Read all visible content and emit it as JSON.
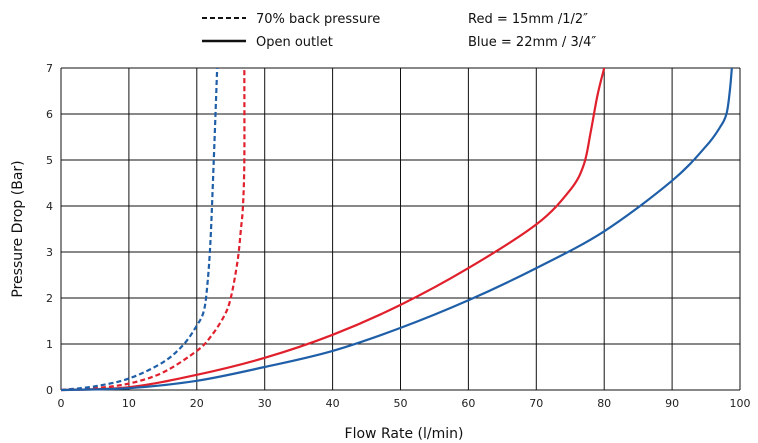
{
  "chart_data": {
    "type": "line",
    "xlabel": "Flow Rate (l/min)",
    "ylabel": "Pressure Drop (Bar)",
    "xlim": [
      0,
      100
    ],
    "ylim": [
      0,
      7
    ],
    "x_ticks": [
      "0",
      "10",
      "20",
      "30",
      "40",
      "50",
      "60",
      "70",
      "80",
      "90",
      "100"
    ],
    "y_ticks": [
      "0",
      "1",
      "2",
      "3",
      "4",
      "5",
      "6",
      "7"
    ],
    "grid": true,
    "legend": {
      "placement": "top",
      "entries": [
        {
          "label": "70% back pressure",
          "style": "dashed"
        },
        {
          "label": "Open outlet",
          "style": "solid"
        }
      ],
      "color_notes": [
        "Red = 15mm /1/2″",
        "Blue = 22mm / 3/4″"
      ]
    },
    "colors": {
      "red": "#e0202c",
      "blue": "#1f5fa8"
    },
    "series": [
      {
        "color": "red",
        "style": "dashed",
        "points": [
          [
            0,
            0
          ],
          [
            5,
            0.04
          ],
          [
            10,
            0.14
          ],
          [
            15,
            0.38
          ],
          [
            20,
            0.85
          ],
          [
            22,
            1.15
          ],
          [
            24,
            1.6
          ],
          [
            25,
            2.0
          ],
          [
            26,
            2.8
          ],
          [
            26.5,
            3.5
          ],
          [
            26.8,
            4.0
          ],
          [
            27,
            5.0
          ],
          [
            27,
            7.0
          ]
        ]
      },
      {
        "color": "blue",
        "style": "dashed",
        "points": [
          [
            0,
            0
          ],
          [
            5,
            0.08
          ],
          [
            10,
            0.25
          ],
          [
            15,
            0.6
          ],
          [
            18,
            0.98
          ],
          [
            20,
            1.4
          ],
          [
            21,
            1.7
          ],
          [
            21.5,
            2.2
          ],
          [
            22,
            3.2
          ],
          [
            22.5,
            5.0
          ],
          [
            23,
            7.0
          ]
        ]
      },
      {
        "color": "red",
        "style": "solid",
        "points": [
          [
            0,
            0
          ],
          [
            10,
            0.06
          ],
          [
            20,
            0.33
          ],
          [
            30,
            0.7
          ],
          [
            40,
            1.2
          ],
          [
            50,
            1.85
          ],
          [
            60,
            2.65
          ],
          [
            70,
            3.6
          ],
          [
            75,
            4.35
          ],
          [
            77,
            4.9
          ],
          [
            78,
            5.6
          ],
          [
            79,
            6.4
          ],
          [
            80,
            7.0
          ]
        ]
      },
      {
        "color": "blue",
        "style": "solid",
        "points": [
          [
            0,
            0
          ],
          [
            10,
            0.04
          ],
          [
            20,
            0.2
          ],
          [
            30,
            0.5
          ],
          [
            40,
            0.85
          ],
          [
            50,
            1.35
          ],
          [
            60,
            1.95
          ],
          [
            70,
            2.65
          ],
          [
            80,
            3.45
          ],
          [
            90,
            4.55
          ],
          [
            95,
            5.3
          ],
          [
            97,
            5.7
          ],
          [
            98,
            6.0
          ],
          [
            98.5,
            6.5
          ],
          [
            98.8,
            7.0
          ]
        ]
      }
    ]
  }
}
